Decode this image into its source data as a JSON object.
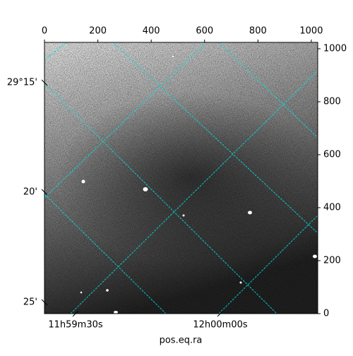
{
  "chart_data": {
    "type": "image",
    "xlabel": "pos.eq.ra",
    "xlim": [
      0,
      1024
    ],
    "xticks": [
      0,
      200,
      400,
      600,
      800,
      1000
    ],
    "ylim": [
      0,
      1024
    ],
    "yticks": [
      0,
      200,
      400,
      600,
      800,
      1000
    ],
    "world_x_labels": [
      "11h59m30s",
      "12h00m00s"
    ],
    "world_y_labels": [
      "29°15'",
      "20'",
      "25'"
    ],
    "grid_color": "#00e5e5"
  }
}
